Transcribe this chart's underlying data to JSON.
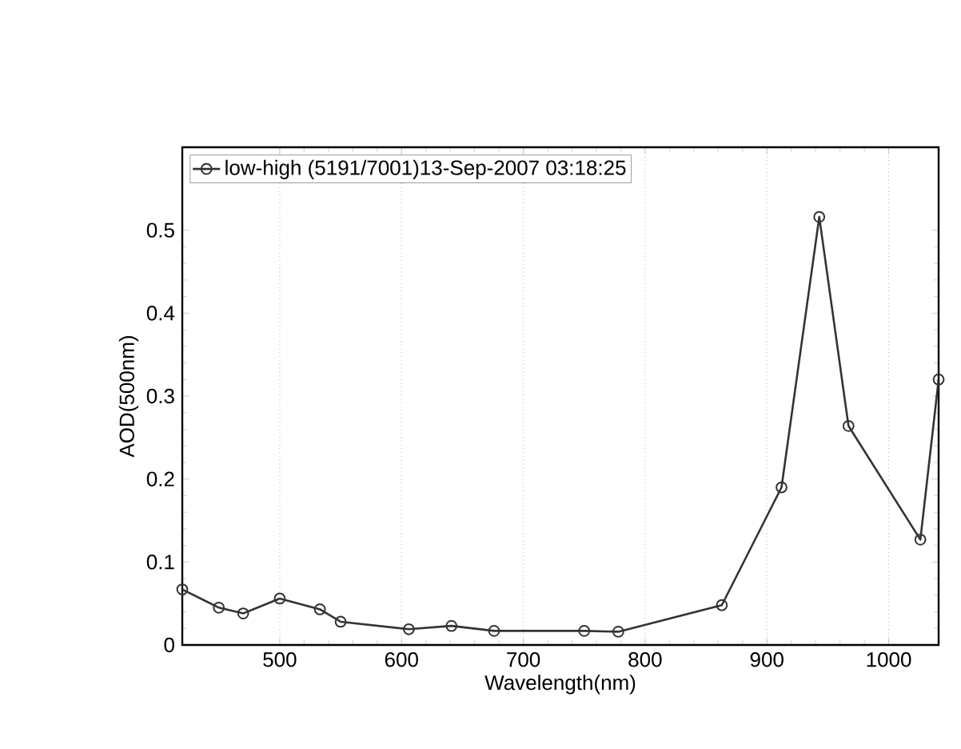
{
  "chart_data": {
    "type": "line",
    "xlabel": "Wavelength(nm)",
    "ylabel": "AOD(500nm)",
    "x": [
      420,
      450,
      470,
      500,
      533,
      550,
      606,
      641,
      676,
      750,
      778,
      863,
      912,
      943,
      967,
      1026,
      1041
    ],
    "series": [
      {
        "name": "low-high (5191/7001)13-Sep-2007 03:18:25",
        "color": "#333333",
        "values": [
          0.067,
          0.045,
          0.038,
          0.056,
          0.043,
          0.028,
          0.019,
          0.023,
          0.017,
          0.017,
          0.016,
          0.048,
          0.19,
          0.516,
          0.264,
          0.127,
          0.32
        ]
      }
    ],
    "xlim": [
      420,
      1041
    ],
    "ylim": [
      0,
      0.6
    ],
    "xticks": [
      500,
      600,
      700,
      800,
      900,
      1000
    ],
    "yticks": [
      0,
      0.1,
      0.2,
      0.3,
      0.4,
      0.5
    ],
    "grid": "x",
    "legend": "top left",
    "marker": "circle",
    "line_style": "solid"
  }
}
